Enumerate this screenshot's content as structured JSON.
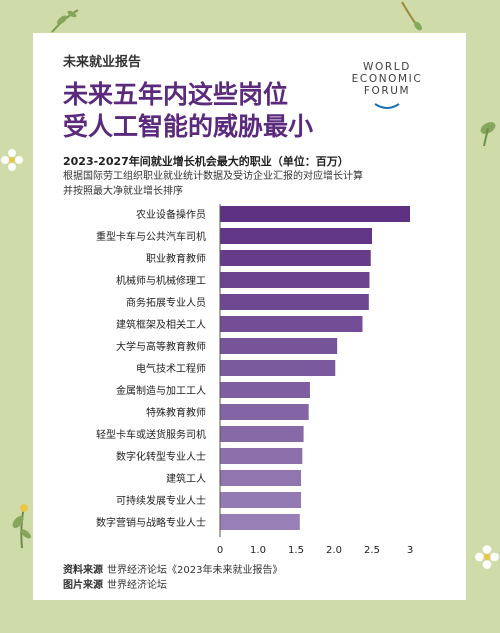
{
  "header": {
    "series_name": "未来就业报告",
    "headline_line1": "未来五年内这些岗位",
    "headline_line2": "受人工智能的威胁最小"
  },
  "logo": {
    "lines": [
      "WORLD",
      "ECONOMIC",
      "FORUM"
    ]
  },
  "chart_data": {
    "type": "bar",
    "orientation": "horizontal",
    "title": "2023-2027年间就业增长机会最大的职业（单位：百万）",
    "subtitle_line1": "根据国际劳工组织职业就业统计数据及受访企业汇报的对应增长计算",
    "subtitle_line2": "并按照最大净就业增长排序",
    "categories": [
      "农业设备操作员",
      "重型卡车与公共汽车司机",
      "职业教育教师",
      "机械师与机械修理工",
      "商务拓展专业人员",
      "建筑框架及相关工人",
      "大学与高等教育教师",
      "电气技术工程师",
      "金属制造与加工工人",
      "特殊教育教师",
      "轻型卡车或送货服务司机",
      "数字化转型专业人士",
      "建筑工人",
      "可持续发展专业人士",
      "数字营销与战略专业人士"
    ],
    "values": [
      3.0,
      2.4,
      2.38,
      2.36,
      2.35,
      2.25,
      1.85,
      1.82,
      1.42,
      1.4,
      1.32,
      1.3,
      1.28,
      1.28,
      1.26
    ],
    "x_ticks": [
      "0",
      "1.0",
      "1.5",
      "2.0",
      "2.5",
      "3"
    ],
    "grid": false,
    "colors": {
      "bar_top": "#5e3183",
      "bar_bottom": "#9880b6",
      "axis": "#555555"
    }
  },
  "sources": {
    "data_label": "资料来源",
    "data_text": "世界经济论坛《2023年未来就业报告》",
    "image_label": "图片来源",
    "image_text": "世界经济论坛"
  },
  "colors": {
    "background": "#cfdba9",
    "headline": "#5b2a7d"
  }
}
